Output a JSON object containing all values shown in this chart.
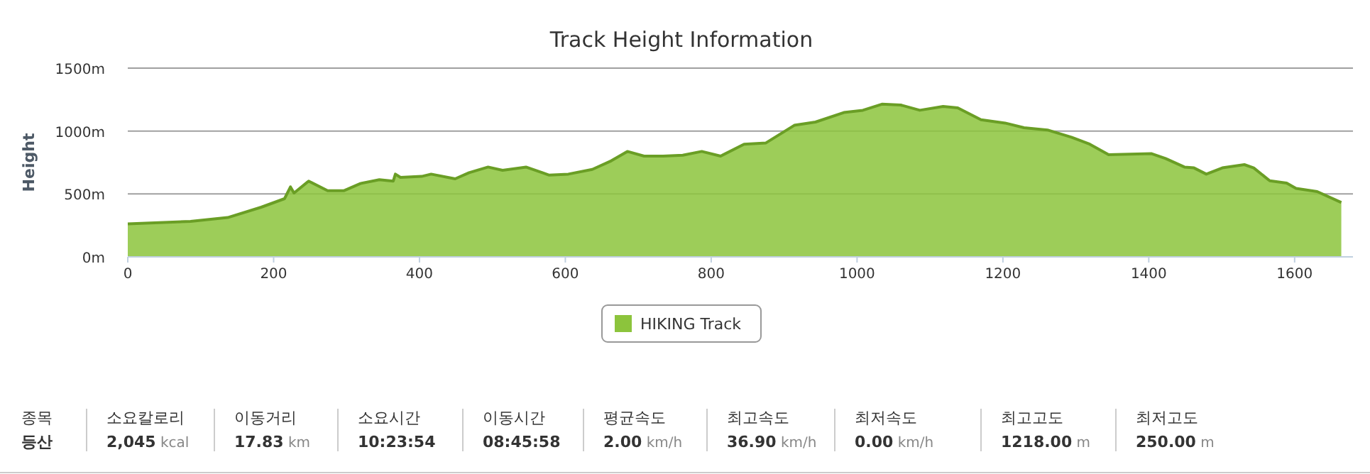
{
  "chart_data": [
    {
      "type": "area",
      "title": "Track Height Information",
      "ylabel": "Height",
      "xlim": [
        0,
        1680
      ],
      "ylim": [
        0,
        1500
      ],
      "xticks": [
        0,
        200,
        400,
        600,
        800,
        1000,
        1200,
        1400,
        1600
      ],
      "yticks": [
        {
          "value": 0,
          "label": "0m"
        },
        {
          "value": 500,
          "label": "500m"
        },
        {
          "value": 1000,
          "label": "1000m"
        },
        {
          "value": 1500,
          "label": "1500m"
        }
      ],
      "grid": "y",
      "legend": "bottom",
      "series": [
        {
          "name": "HIKING Track",
          "color": "#8cc43c",
          "x": [
            0,
            86,
            137,
            183,
            215,
            223,
            228,
            248,
            274,
            296,
            319,
            345,
            364,
            367,
            374,
            403,
            416,
            449,
            468,
            494,
            514,
            546,
            578,
            604,
            637,
            663,
            685,
            708,
            734,
            761,
            787,
            813,
            845,
            875,
            914,
            943,
            982,
            1008,
            1034,
            1060,
            1086,
            1118,
            1138,
            1170,
            1203,
            1229,
            1261,
            1294,
            1319,
            1345,
            1404,
            1423,
            1449,
            1462,
            1479,
            1501,
            1531,
            1544,
            1566,
            1589,
            1602,
            1631,
            1664
          ],
          "values": [
            263,
            282,
            312,
            395,
            462,
            556,
            507,
            602,
            526,
            526,
            583,
            613,
            602,
            658,
            632,
            639,
            658,
            620,
            669,
            714,
            688,
            714,
            650,
            658,
            695,
            763,
            838,
            801,
            801,
            808,
            838,
            801,
            895,
            906,
            1045,
            1071,
            1147,
            1165,
            1214,
            1207,
            1165,
            1195,
            1184,
            1090,
            1064,
            1026,
            1008,
            951,
            895,
            812,
            820,
            782,
            714,
            707,
            658,
            707,
            733,
            707,
            605,
            587,
            545,
            519,
            432
          ]
        }
      ]
    },
    {
      "type": "other",
      "annotations": [
        "종목",
        "소요칼로리",
        "이동거리",
        "소요시간",
        "이동시간",
        "평균속도",
        "최고속도",
        "최저속도",
        "최고고도",
        "최저고도",
        "등산",
        "2,045 kcal",
        "17.83 km",
        "10:23:54",
        "08:45:58",
        "2.00 km/h",
        "36.90 km/h",
        "0.00 km/h",
        "1218.00 m",
        "250.00 m"
      ]
    }
  ]
}
